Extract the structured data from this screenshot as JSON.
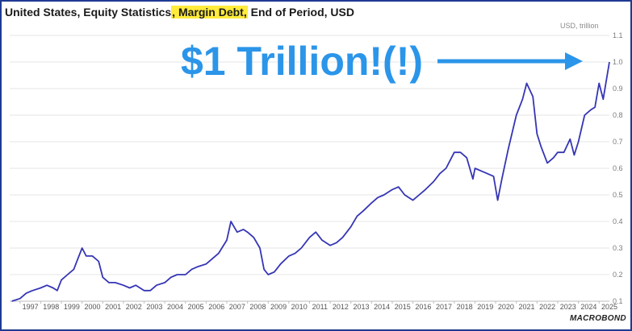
{
  "title": {
    "part1": "United States, Equity Statistics",
    "highlight": ", Margin Debt,",
    "part2": " End of Period, USD"
  },
  "unit_label": "USD, trillion",
  "annotation": "$1 Trillion!(!)",
  "brand": "MACROBOND",
  "colors": {
    "line": "#3535b5",
    "callout": "#2b95e9",
    "highlight": "#ffeb3b",
    "frame": "#1f3a93"
  },
  "chart_data": {
    "type": "line",
    "title": "United States, Equity Statistics, Margin Debt, End of Period, USD",
    "ylabel": "USD, trillion",
    "ylim": [
      0.1,
      1.1
    ],
    "yticks": [
      0.1,
      0.2,
      0.3,
      0.4,
      0.5,
      0.6,
      0.7,
      0.8,
      0.9,
      1.0,
      1.1
    ],
    "ytick_labels": [
      "0.1",
      "0.2",
      "0.3",
      "0.4",
      "0.5",
      "0.6",
      "0.7",
      "0.8",
      "0.9",
      "1.0",
      "1.1"
    ],
    "xlim": [
      1996.5,
      2025.5
    ],
    "xticks": [
      "1997",
      "1998",
      "1999",
      "2000",
      "2001",
      "2002",
      "2003",
      "2004",
      "2005",
      "2006",
      "2007",
      "2008",
      "2009",
      "2010",
      "2011",
      "2012",
      "2013",
      "2014",
      "2015",
      "2016",
      "2017",
      "2018",
      "2019",
      "2020",
      "2021",
      "2022",
      "2023",
      "2024",
      "2025"
    ],
    "grid": true,
    "series": [
      {
        "x": [
          1996.6,
          1997.0,
          1997.3,
          1997.6,
          1998.0,
          1998.3,
          1998.6,
          1998.8,
          1999.0,
          1999.3,
          1999.6,
          1999.8,
          2000.0,
          2000.2,
          2000.5,
          2000.8,
          2001.0,
          2001.3,
          2001.6,
          2002.0,
          2002.3,
          2002.6,
          2003.0,
          2003.3,
          2003.6,
          2004.0,
          2004.3,
          2004.6,
          2005.0,
          2005.3,
          2005.6,
          2006.0,
          2006.3,
          2006.6,
          2007.0,
          2007.2,
          2007.5,
          2007.8,
          2008.0,
          2008.3,
          2008.6,
          2008.8,
          2009.0,
          2009.3,
          2009.6,
          2010.0,
          2010.3,
          2010.6,
          2011.0,
          2011.3,
          2011.6,
          2012.0,
          2012.3,
          2012.6,
          2013.0,
          2013.3,
          2013.6,
          2014.0,
          2014.3,
          2014.6,
          2015.0,
          2015.3,
          2015.6,
          2016.0,
          2016.3,
          2016.6,
          2017.0,
          2017.3,
          2017.6,
          2018.0,
          2018.3,
          2018.6,
          2018.9,
          2019.0,
          2019.3,
          2019.6,
          2019.9,
          2020.1,
          2020.3,
          2020.6,
          2021.0,
          2021.3,
          2021.5,
          2021.8,
          2022.0,
          2022.2,
          2022.5,
          2022.8,
          2023.0,
          2023.3,
          2023.6,
          2023.8,
          2024.0,
          2024.3,
          2024.6,
          2024.8,
          2025.0,
          2025.2,
          2025.5
        ],
        "y": [
          0.1,
          0.11,
          0.13,
          0.14,
          0.15,
          0.16,
          0.15,
          0.14,
          0.18,
          0.2,
          0.22,
          0.26,
          0.3,
          0.27,
          0.27,
          0.25,
          0.19,
          0.17,
          0.17,
          0.16,
          0.15,
          0.16,
          0.14,
          0.14,
          0.16,
          0.17,
          0.19,
          0.2,
          0.2,
          0.22,
          0.23,
          0.24,
          0.26,
          0.28,
          0.33,
          0.4,
          0.36,
          0.37,
          0.36,
          0.34,
          0.3,
          0.22,
          0.2,
          0.21,
          0.24,
          0.27,
          0.28,
          0.3,
          0.34,
          0.36,
          0.33,
          0.31,
          0.32,
          0.34,
          0.38,
          0.42,
          0.44,
          0.47,
          0.49,
          0.5,
          0.52,
          0.53,
          0.5,
          0.48,
          0.5,
          0.52,
          0.55,
          0.58,
          0.6,
          0.66,
          0.66,
          0.64,
          0.56,
          0.6,
          0.59,
          0.58,
          0.57,
          0.48,
          0.56,
          0.67,
          0.8,
          0.86,
          0.92,
          0.87,
          0.73,
          0.68,
          0.62,
          0.64,
          0.66,
          0.66,
          0.71,
          0.65,
          0.7,
          0.8,
          0.82,
          0.83,
          0.92,
          0.86,
          1.0
        ]
      }
    ]
  }
}
